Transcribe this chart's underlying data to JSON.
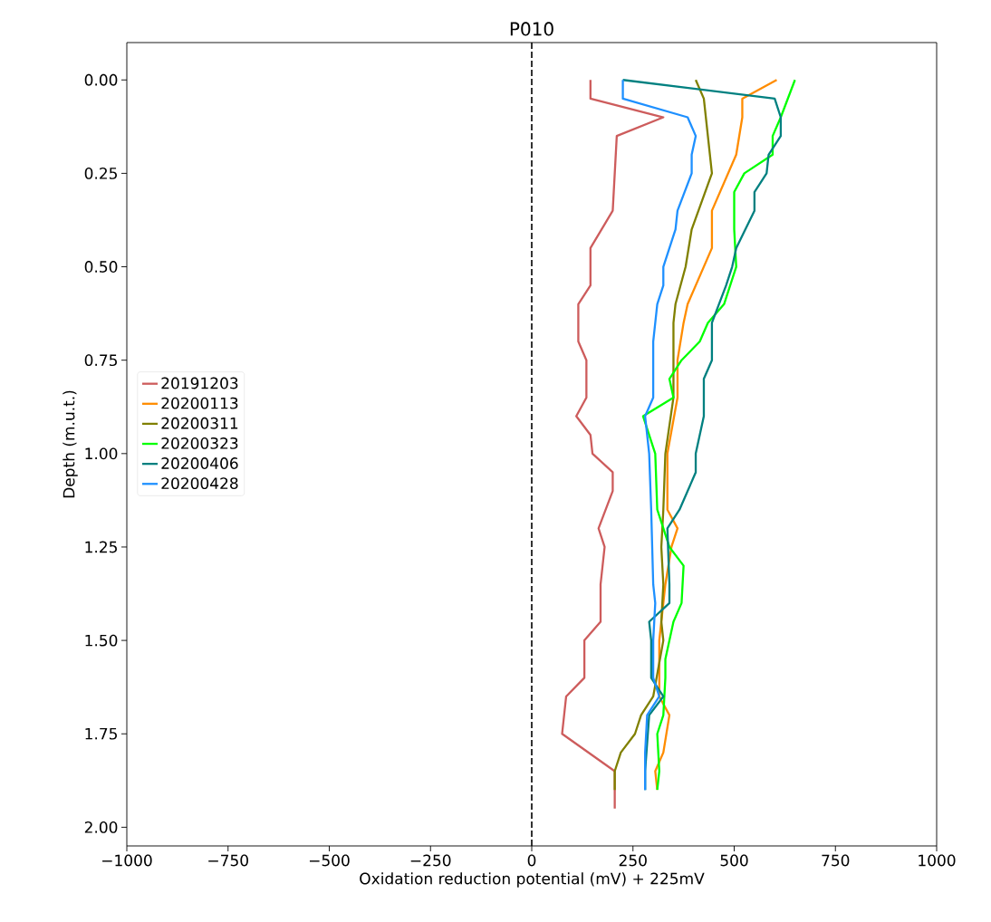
{
  "chart_data": {
    "type": "line",
    "title": "P010",
    "xlabel": "Oxidation reduction potential (mV) + 225mV",
    "ylabel": "Depth (m.u.t.)",
    "xlim": [
      -1000,
      1000
    ],
    "ylim": [
      2.05,
      -0.1
    ],
    "xticks": [
      {
        "value": -1000,
        "label": "−1000"
      },
      {
        "value": -750,
        "label": "−750"
      },
      {
        "value": -500,
        "label": "−500"
      },
      {
        "value": -250,
        "label": "−250"
      },
      0,
      250,
      500,
      750,
      1000
    ],
    "yticks": [
      {
        "value": 0,
        "label": "0.00"
      },
      0.25,
      {
        "value": 0.5,
        "label": "0.50"
      },
      0.75,
      {
        "value": 1,
        "label": "1.00"
      },
      1.25,
      {
        "value": 1.5,
        "label": "1.50"
      },
      1.75,
      {
        "value": 2,
        "label": "2.00"
      }
    ],
    "legend": "left",
    "grid": false,
    "line_style": "solid",
    "marker": "none",
    "ref_lines": [
      {
        "axis": "x",
        "value": 0,
        "color": "#000000",
        "line_style": "dashed"
      }
    ],
    "series": [
      {
        "name": "20191203",
        "color": "#cd5c5c",
        "x": [
          145,
          145,
          325,
          210,
          200,
          145,
          145,
          115,
          115,
          135,
          135,
          110,
          145,
          150,
          200,
          200,
          165,
          180,
          170,
          170,
          130,
          130,
          85,
          75,
          205,
          205
        ],
        "values": [
          0,
          0.05,
          0.1,
          0.15,
          0.35,
          0.45,
          0.55,
          0.6,
          0.7,
          0.75,
          0.85,
          0.9,
          0.95,
          1.0,
          1.05,
          1.1,
          1.2,
          1.25,
          1.35,
          1.45,
          1.5,
          1.6,
          1.65,
          1.75,
          1.85,
          1.95
        ]
      },
      {
        "name": "20200113",
        "color": "#ff8c00",
        "x": [
          605,
          520,
          520,
          505,
          445,
          445,
          385,
          375,
          360,
          360,
          335,
          335,
          360,
          345,
          330,
          315,
          315,
          340,
          325,
          305,
          310
        ],
        "values": [
          0,
          0.05,
          0.1,
          0.2,
          0.35,
          0.45,
          0.6,
          0.65,
          0.75,
          0.85,
          1.0,
          1.15,
          1.2,
          1.25,
          1.35,
          1.5,
          1.65,
          1.7,
          1.8,
          1.85,
          1.9
        ]
      },
      {
        "name": "20200311",
        "color": "#808000",
        "x": [
          405,
          425,
          435,
          445,
          395,
          380,
          355,
          350,
          350,
          330,
          325,
          320,
          325,
          320,
          325,
          300,
          270,
          255,
          220,
          205,
          205
        ],
        "values": [
          0,
          0.05,
          0.15,
          0.25,
          0.4,
          0.5,
          0.6,
          0.65,
          0.85,
          1.0,
          1.15,
          1.25,
          1.35,
          1.45,
          1.5,
          1.65,
          1.7,
          1.75,
          1.8,
          1.85,
          1.9
        ]
      },
      {
        "name": "20200323",
        "color": "#00ff00",
        "x": [
          650,
          615,
          595,
          595,
          525,
          500,
          500,
          505,
          475,
          435,
          415,
          370,
          340,
          350,
          275,
          305,
          310,
          340,
          375,
          370,
          350,
          330,
          330,
          325,
          310,
          315,
          310
        ],
        "values": [
          0,
          0.1,
          0.15,
          0.2,
          0.25,
          0.3,
          0.4,
          0.5,
          0.6,
          0.65,
          0.7,
          0.75,
          0.8,
          0.85,
          0.9,
          1.0,
          1.15,
          1.25,
          1.3,
          1.4,
          1.45,
          1.55,
          1.6,
          1.7,
          1.75,
          1.85,
          1.9
        ]
      },
      {
        "name": "20200406",
        "color": "#008080",
        "x": [
          225,
          600,
          615,
          615,
          585,
          580,
          550,
          550,
          505,
          495,
          480,
          445,
          445,
          425,
          425,
          405,
          405,
          365,
          335,
          340,
          340,
          290,
          295,
          295,
          325,
          290,
          280,
          280
        ],
        "values": [
          0,
          0.05,
          0.1,
          0.15,
          0.2,
          0.25,
          0.3,
          0.35,
          0.45,
          0.5,
          0.55,
          0.65,
          0.75,
          0.8,
          0.9,
          1.0,
          1.05,
          1.15,
          1.2,
          1.35,
          1.4,
          1.45,
          1.5,
          1.6,
          1.65,
          1.7,
          1.85,
          1.9
        ]
      },
      {
        "name": "20200428",
        "color": "#1e90ff",
        "x": [
          225,
          225,
          385,
          405,
          395,
          395,
          360,
          355,
          325,
          325,
          310,
          300,
          300,
          280,
          290,
          295,
          300,
          305,
          300,
          300,
          315,
          285,
          280,
          280
        ],
        "values": [
          0,
          0.05,
          0.1,
          0.15,
          0.2,
          0.25,
          0.35,
          0.4,
          0.5,
          0.55,
          0.6,
          0.7,
          0.85,
          0.9,
          1.0,
          1.15,
          1.35,
          1.4,
          1.5,
          1.6,
          1.65,
          1.7,
          1.8,
          1.9
        ]
      }
    ]
  }
}
